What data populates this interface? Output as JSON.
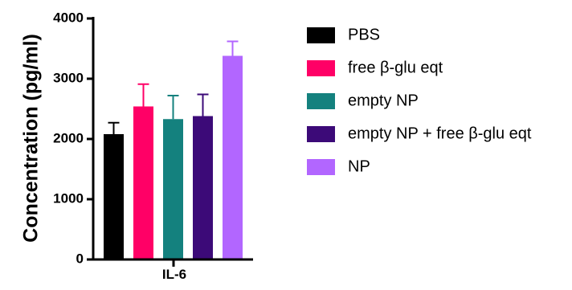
{
  "chart_data": {
    "type": "bar",
    "categories": [
      "IL-6"
    ],
    "ylabel": "Concentration (pg/ml)",
    "xlabel": "",
    "ylim": [
      0,
      4000
    ],
    "yticks": [
      0,
      1000,
      2000,
      3000,
      4000
    ],
    "ytick_labels": [
      "0",
      "1000",
      "2000",
      "3000",
      "4000"
    ],
    "series": [
      {
        "name": "PBS",
        "values": [
          2080
        ],
        "error": [
          190
        ],
        "color": "#000000"
      },
      {
        "name": "free β-glu eqt",
        "values": [
          2540
        ],
        "error": [
          370
        ],
        "color": "#ff0066"
      },
      {
        "name": "empty NP",
        "values": [
          2330
        ],
        "error": [
          390
        ],
        "color": "#14817e"
      },
      {
        "name": "empty NP + free β-glu eqt",
        "values": [
          2380
        ],
        "error": [
          360
        ],
        "color": "#3c0a78"
      },
      {
        "name": "NP",
        "values": [
          3380
        ],
        "error": [
          240
        ],
        "color": "#b266ff"
      }
    ],
    "legend_position": "right",
    "grid": false
  }
}
